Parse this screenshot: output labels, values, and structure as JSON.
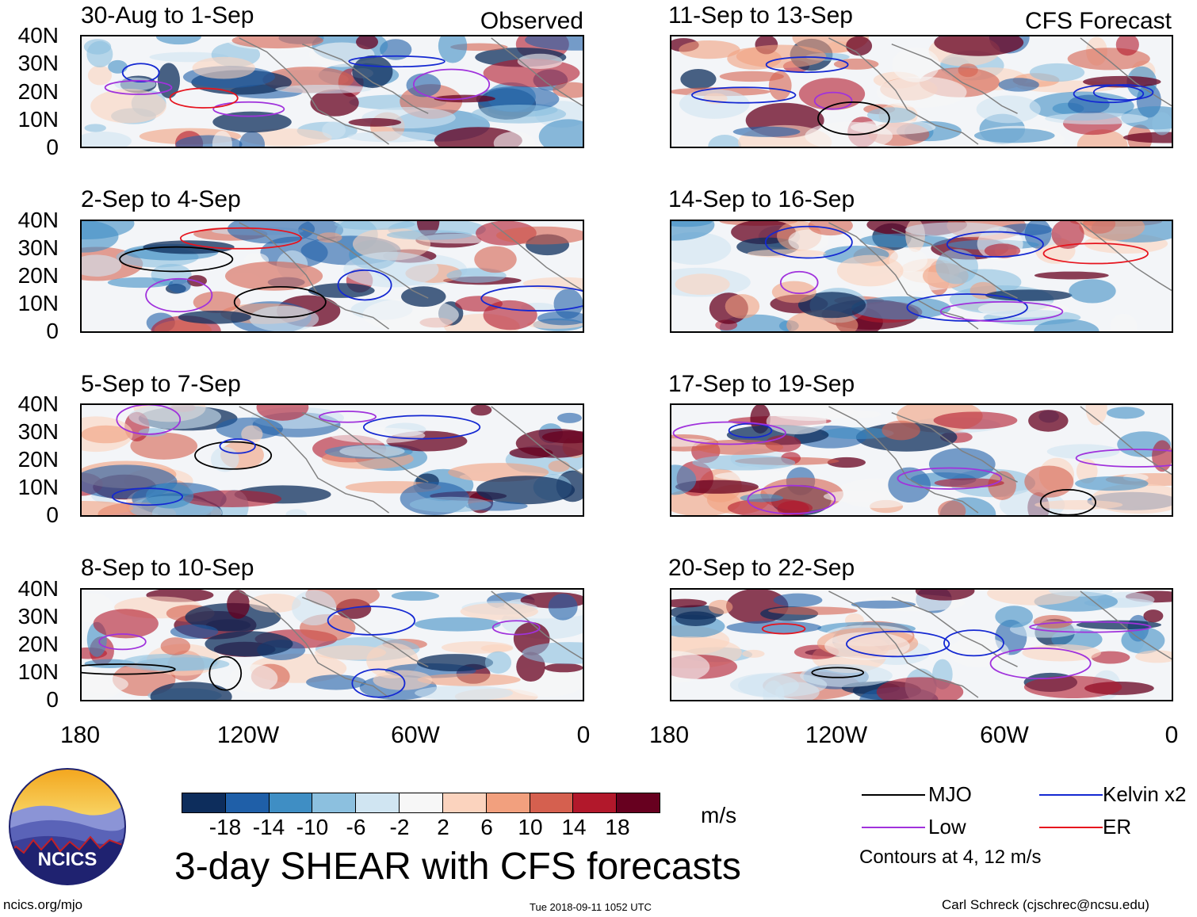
{
  "chart_data": {
    "type": "heatmap",
    "title": "3-day SHEAR with CFS forecasts",
    "units": "m/s",
    "header_left": "Observed",
    "header_right": "CFS Forecast",
    "lat_ticks": [
      "40N",
      "30N",
      "20N",
      "10N",
      "0"
    ],
    "lon_ticks": [
      "180",
      "120W",
      "60W",
      "0"
    ],
    "lon_range": [
      -180,
      0
    ],
    "lat_range": [
      0,
      40
    ],
    "panels": [
      {
        "title": "30-Aug to 1-Sep",
        "kind": "Observed"
      },
      {
        "title": "2-Sep to 4-Sep",
        "kind": "Observed"
      },
      {
        "title": "5-Sep to 7-Sep",
        "kind": "Observed"
      },
      {
        "title": "8-Sep to 10-Sep",
        "kind": "Observed"
      },
      {
        "title": "11-Sep to 13-Sep",
        "kind": "CFS Forecast"
      },
      {
        "title": "14-Sep to 16-Sep",
        "kind": "CFS Forecast"
      },
      {
        "title": "17-Sep to 19-Sep",
        "kind": "CFS Forecast"
      },
      {
        "title": "20-Sep to 22-Sep",
        "kind": "CFS Forecast"
      }
    ],
    "colorbar": {
      "labels": [
        "-18",
        "-14",
        "-10",
        "-6",
        "-2",
        "2",
        "6",
        "10",
        "14",
        "18"
      ],
      "colors": [
        "#0d2d5c",
        "#1f5fa8",
        "#3f8ec4",
        "#8cc0df",
        "#d0e5f2",
        "#f7f7f7",
        "#fbd3be",
        "#f2a07e",
        "#d5604f",
        "#b2182b",
        "#67001f"
      ]
    },
    "legend": [
      {
        "label": "MJO",
        "color": "#000000"
      },
      {
        "label": "Kelvin x2",
        "color": "#1428d2"
      },
      {
        "label": "Low",
        "color": "#a032dc"
      },
      {
        "label": "ER",
        "color": "#e6141e"
      }
    ],
    "contour_note": "Contours at 4, 12 m/s"
  },
  "logo": {
    "text": "NCICS"
  },
  "footer": {
    "left": "ncics.org/mjo",
    "center": "Tue 2018-09-11 1052 UTC",
    "right": "Carl Schreck (cjschrec@ncsu.edu)"
  }
}
